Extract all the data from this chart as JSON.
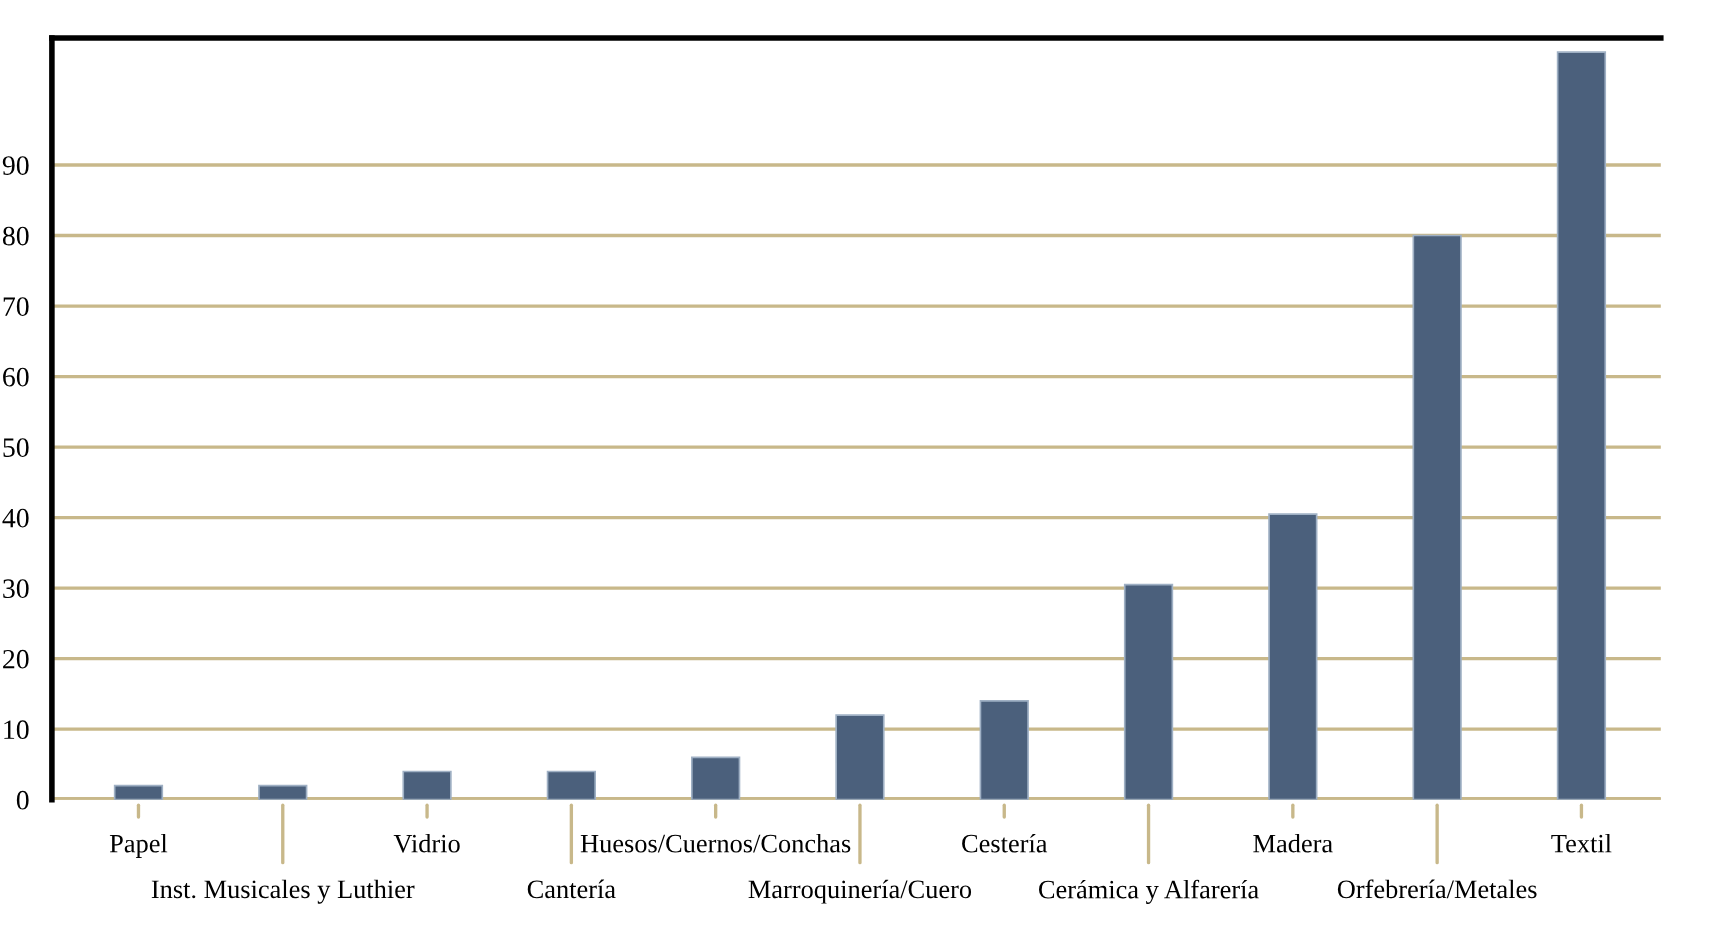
{
  "chart_data": {
    "type": "bar",
    "categories": [
      "Papel",
      "Inst. Musicales y Luthier",
      "Vidrio",
      "Cantería",
      "Huesos/Cuernos/Conchas",
      "Marroquinería/Cuero",
      "Cestería",
      "Cerámica y Alfarería",
      "Madera",
      "Orfebrería/Metales",
      "Textil"
    ],
    "values": [
      2,
      2,
      4,
      4,
      6,
      12,
      14,
      30.5,
      40.5,
      80,
      106
    ],
    "color": "#4b607c",
    "ylim": [
      0,
      108
    ],
    "yticks": [
      0,
      10,
      20,
      30,
      40,
      50,
      60,
      70,
      80,
      90
    ],
    "grid": "y",
    "legend": false
  }
}
